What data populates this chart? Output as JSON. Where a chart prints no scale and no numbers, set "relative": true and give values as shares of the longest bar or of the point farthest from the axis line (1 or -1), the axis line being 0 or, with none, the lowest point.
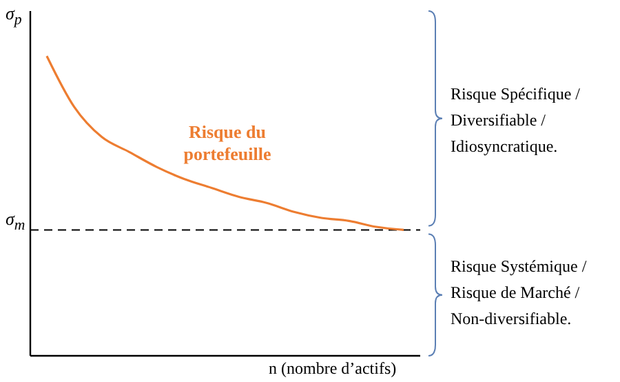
{
  "chart_data": {
    "type": "line",
    "relative": true,
    "ylabel": "σ$_{p}$",
    "xlabel": "n (nombre d’actifs)",
    "categories": [
      null,
      null,
      null,
      null,
      null,
      null,
      null,
      null,
      null,
      null,
      null,
      null,
      null,
      null
    ],
    "series": [
      {
        "color": "#ed7d31",
        "values": [
          1,
          0.83,
          0.73,
          0.68,
          0.63,
          0.59,
          0.56,
          0.53,
          0.51,
          0.48,
          0.46,
          0.45,
          0.43,
          0.42
        ]
      }
    ],
    "ref_lines": [
      {
        "axis": "y",
        "value": 0.42,
        "label": "σ$_{m}$",
        "color": "#000000",
        "line_style": "dashed"
      }
    ],
    "annotations": [
      "Risque du portefeuille",
      "Risque Spécifique / Diversifiable / Idiosyncratique.",
      "Risque Systémique / Risque de Marché / Non-diversifiable."
    ],
    "marker": "none",
    "grid": false
  }
}
